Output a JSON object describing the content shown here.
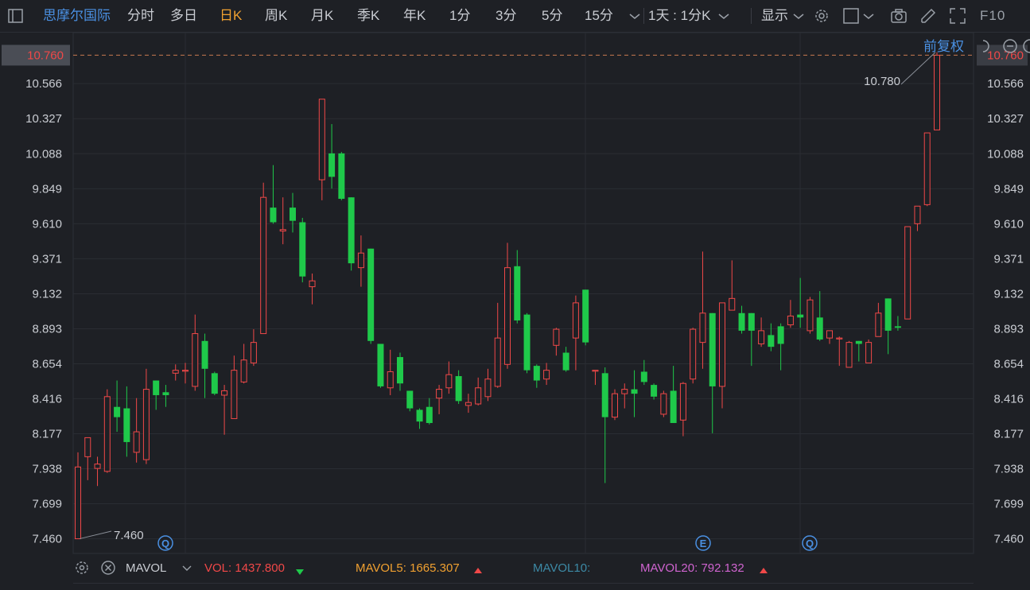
{
  "toolbar": {
    "stock_name": "思摩尔国际",
    "periods": [
      "分时",
      "多日",
      "日K",
      "周K",
      "月K",
      "季K",
      "年K",
      "1分",
      "3分",
      "5分",
      "15分"
    ],
    "active_period": "日K",
    "interval_select": "1天 : 1分K",
    "display_label": "显示",
    "f10_label": "F10"
  },
  "chart_header": {
    "adjust_label": "前复权"
  },
  "price_axis": {
    "ticks": [
      "10.760",
      "10.566",
      "10.327",
      "10.088",
      "9.849",
      "9.610",
      "9.371",
      "9.132",
      "8.893",
      "8.654",
      "8.416",
      "8.177",
      "7.938",
      "7.699",
      "7.460"
    ],
    "current_price": "10.760",
    "max_label": "10.780",
    "min_label": "7.460"
  },
  "markers": [
    "Q",
    "E",
    "Q"
  ],
  "colors": {
    "up": "#f04848",
    "down": "#1fc94a",
    "background": "#1e2025",
    "grid": "#2a2d33",
    "ma5": "#f0a030",
    "ma10": "#3d8aa6",
    "ma20": "#d064d0",
    "blue": "#4a90e2"
  },
  "volume_bar": {
    "indicator": "MAVOL",
    "vol_label": "VOL:",
    "vol_value": "1437.800",
    "mavol5_label": "MAVOL5:",
    "mavol5_value": "1665.307",
    "mavol10_label": "MAVOL10:",
    "mavol20_label": "MAVOL20:",
    "mavol20_value": "792.132"
  },
  "chart_data": {
    "type": "candlestick",
    "ylim": [
      7.36,
      10.86
    ],
    "ohlc": [
      [
        7.46,
        7.95,
        7.46,
        8.05
      ],
      [
        8.02,
        8.15,
        7.86,
        8.15
      ],
      [
        7.94,
        7.97,
        7.82,
        8.02
      ],
      [
        7.92,
        8.43,
        7.91,
        8.48
      ],
      [
        8.36,
        8.29,
        8.19,
        8.54
      ],
      [
        8.35,
        8.12,
        8.02,
        8.5
      ],
      [
        8.05,
        8.19,
        7.98,
        8.42
      ],
      [
        8.0,
        8.48,
        7.97,
        8.62
      ],
      [
        8.54,
        8.44,
        8.34,
        8.54
      ],
      [
        8.46,
        8.44,
        8.36,
        8.51
      ],
      [
        8.59,
        8.61,
        8.54,
        8.65
      ],
      [
        8.61,
        8.61,
        8.52,
        8.66
      ],
      [
        8.5,
        8.86,
        8.47,
        8.99
      ],
      [
        8.81,
        8.62,
        8.42,
        8.86
      ],
      [
        8.59,
        8.45,
        8.44,
        8.6
      ],
      [
        8.44,
        8.47,
        8.17,
        8.51
      ],
      [
        8.28,
        8.61,
        8.28,
        8.71
      ],
      [
        8.53,
        8.68,
        8.52,
        8.79
      ],
      [
        8.66,
        8.8,
        8.64,
        8.89
      ],
      [
        8.86,
        9.79,
        8.86,
        9.89
      ],
      [
        9.72,
        9.62,
        9.61,
        10.01
      ],
      [
        9.56,
        9.57,
        9.47,
        9.79
      ],
      [
        9.72,
        9.63,
        9.55,
        9.82
      ],
      [
        9.62,
        9.25,
        9.21,
        9.65
      ],
      [
        9.18,
        9.22,
        9.06,
        9.27
      ],
      [
        9.91,
        10.46,
        9.77,
        10.46
      ],
      [
        10.09,
        9.93,
        9.85,
        10.29
      ],
      [
        10.09,
        9.78,
        9.77,
        10.1
      ],
      [
        9.79,
        9.34,
        9.29,
        9.79
      ],
      [
        9.31,
        9.41,
        9.18,
        9.53
      ],
      [
        9.44,
        8.81,
        8.79,
        9.44
      ],
      [
        8.79,
        8.5,
        8.49,
        8.79
      ],
      [
        8.49,
        8.6,
        8.44,
        8.75
      ],
      [
        8.7,
        8.52,
        8.47,
        8.73
      ],
      [
        8.47,
        8.35,
        8.33,
        8.47
      ],
      [
        8.34,
        8.26,
        8.21,
        8.35
      ],
      [
        8.36,
        8.25,
        8.24,
        8.42
      ],
      [
        8.42,
        8.48,
        8.31,
        8.51
      ],
      [
        8.49,
        8.58,
        8.45,
        8.67
      ],
      [
        8.57,
        8.4,
        8.38,
        8.61
      ],
      [
        8.37,
        8.39,
        8.32,
        8.45
      ],
      [
        8.38,
        8.49,
        8.37,
        8.56
      ],
      [
        8.43,
        8.55,
        8.4,
        8.62
      ],
      [
        8.5,
        8.83,
        8.49,
        9.07
      ],
      [
        8.65,
        9.31,
        8.62,
        9.48
      ],
      [
        9.32,
        8.95,
        8.93,
        9.43
      ],
      [
        8.99,
        8.61,
        8.59,
        9.0
      ],
      [
        8.64,
        8.54,
        8.49,
        8.65
      ],
      [
        8.55,
        8.61,
        8.51,
        8.66
      ],
      [
        8.78,
        8.89,
        8.71,
        8.9
      ],
      [
        8.73,
        8.61,
        8.6,
        8.77
      ],
      [
        8.83,
        9.07,
        8.61,
        9.12
      ],
      [
        9.16,
        8.8,
        8.78,
        9.16
      ],
      [
        8.61,
        8.61,
        8.51,
        8.61
      ],
      [
        8.59,
        8.29,
        7.84,
        8.63
      ],
      [
        8.29,
        8.45,
        8.27,
        8.48
      ],
      [
        8.45,
        8.48,
        8.35,
        8.52
      ],
      [
        8.48,
        8.45,
        8.29,
        8.61
      ],
      [
        8.6,
        8.53,
        8.51,
        8.68
      ],
      [
        8.51,
        8.43,
        8.41,
        8.52
      ],
      [
        8.31,
        8.45,
        8.29,
        8.47
      ],
      [
        8.47,
        8.25,
        8.25,
        8.64
      ],
      [
        8.27,
        8.52,
        8.16,
        8.53
      ],
      [
        8.55,
        8.89,
        8.52,
        8.9
      ],
      [
        8.8,
        9.0,
        8.62,
        9.42
      ],
      [
        9.0,
        8.5,
        8.18,
        9.0
      ],
      [
        8.5,
        9.07,
        8.35,
        9.07
      ],
      [
        9.02,
        9.1,
        9.02,
        9.36
      ],
      [
        9.0,
        8.88,
        8.86,
        9.05
      ],
      [
        9.0,
        8.88,
        8.64,
        9.0
      ],
      [
        8.79,
        8.88,
        8.77,
        8.97
      ],
      [
        8.85,
        8.77,
        8.74,
        8.93
      ],
      [
        8.91,
        8.79,
        8.61,
        8.93
      ],
      [
        8.92,
        8.98,
        8.9,
        9.09
      ],
      [
        8.99,
        8.97,
        8.9,
        9.24
      ],
      [
        8.88,
        9.09,
        8.86,
        9.11
      ],
      [
        8.97,
        8.82,
        8.81,
        9.15
      ],
      [
        8.83,
        8.88,
        8.79,
        8.88
      ],
      [
        8.83,
        8.83,
        8.64,
        8.84
      ],
      [
        8.63,
        8.8,
        8.63,
        8.81
      ],
      [
        8.81,
        8.79,
        8.67,
        8.81
      ],
      [
        8.66,
        8.8,
        8.66,
        8.82
      ],
      [
        8.84,
        9.0,
        8.84,
        9.07
      ],
      [
        9.1,
        8.88,
        8.72,
        9.1
      ],
      [
        8.91,
        8.9,
        8.88,
        8.98
      ],
      [
        8.96,
        9.59,
        8.96,
        9.59
      ],
      [
        9.61,
        9.73,
        9.56,
        9.73
      ],
      [
        9.74,
        10.23,
        9.73,
        10.23
      ],
      [
        10.25,
        10.76,
        10.25,
        10.78
      ]
    ]
  }
}
